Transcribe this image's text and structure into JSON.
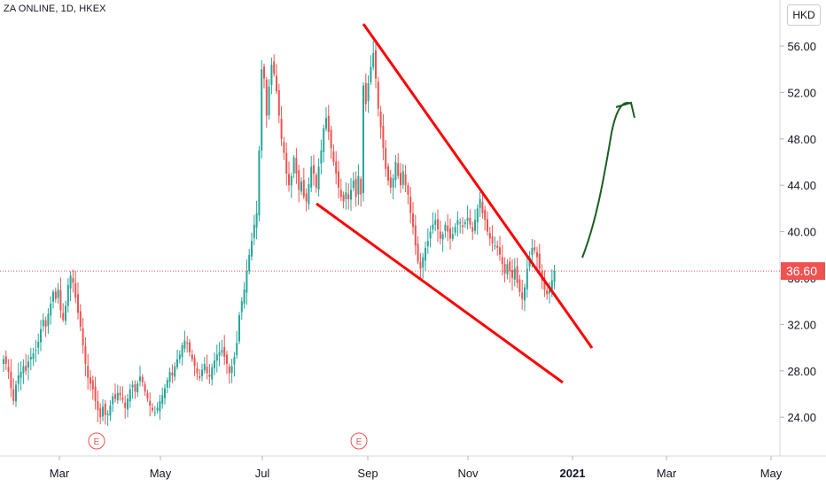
{
  "header": {
    "title": "ZA ONLINE, 1D, HKEX",
    "currency": "HKD"
  },
  "colors": {
    "up": "#26a69a",
    "down": "#ef5350",
    "annotation_red": "#ff0000",
    "annotation_green": "#1b5e20",
    "price_label_bg": "#ef5350"
  },
  "chart_data": {
    "type": "candlestick",
    "title": "ZA ONLINE, 1D, HKEX",
    "ylabel": "HKD",
    "ylim": [
      21.5,
      58.5
    ],
    "y_ticks": [
      "24.00",
      "28.00",
      "32.00",
      "36.00",
      "40.00",
      "44.00",
      "48.00",
      "52.00",
      "56.00"
    ],
    "x_ticks": [
      "Mar",
      "May",
      "Jul",
      "Sep",
      "Nov",
      "2021",
      "Mar",
      "May"
    ],
    "last_price": "36.60",
    "close_series": [
      29.0,
      28.6,
      27.9,
      26.5,
      25.4,
      26.8,
      27.6,
      27.9,
      28.4,
      28.0,
      28.8,
      29.2,
      29.5,
      29.8,
      30.5,
      31.6,
      32.4,
      31.8,
      32.9,
      33.8,
      34.8,
      34.2,
      35.0,
      33.2,
      32.4,
      33.6,
      35.4,
      36.2,
      35.6,
      34.3,
      33.0,
      31.8,
      30.2,
      28.6,
      27.4,
      26.9,
      26.4,
      25.4,
      24.6,
      24.0,
      24.9,
      24.2,
      24.3,
      25.0,
      25.8,
      25.6,
      26.1,
      25.9,
      25.5,
      24.8,
      25.6,
      26.4,
      26.8,
      26.2,
      26.9,
      27.5,
      27.0,
      26.2,
      25.6,
      25.0,
      24.6,
      24.4,
      24.8,
      25.4,
      25.9,
      26.5,
      27.2,
      27.9,
      27.6,
      28.4,
      29.0,
      29.4,
      30.2,
      30.6,
      30.4,
      29.6,
      29.0,
      28.4,
      27.8,
      27.4,
      28.1,
      28.6,
      27.8,
      27.5,
      28.3,
      28.9,
      29.4,
      29.6,
      29.8,
      29.2,
      28.6,
      27.8,
      28.4,
      29.2,
      30.4,
      32.8,
      34.0,
      35.0,
      36.6,
      38.0,
      39.2,
      40.6,
      41.6,
      47.0,
      54.0,
      53.2,
      50.0,
      52.5,
      54.4,
      53.6,
      52.1,
      50.0,
      48.0,
      46.8,
      45.0,
      44.0,
      44.8,
      46.4,
      45.0,
      43.6,
      44.3,
      43.0,
      42.6,
      44.1,
      45.6,
      45.0,
      43.8,
      45.6,
      47.0,
      48.9,
      49.8,
      48.6,
      47.2,
      46.0,
      45.0,
      43.8,
      43.0,
      42.6,
      43.4,
      42.8,
      43.6,
      44.4,
      43.0,
      44.8,
      43.2,
      52.6,
      51.0,
      52.8,
      54.2,
      55.4,
      53.2,
      50.6,
      49.0,
      47.2,
      45.4,
      44.4,
      43.8,
      44.6,
      46.0,
      44.8,
      44.0,
      45.2,
      44.0,
      43.2,
      41.6,
      40.4,
      38.8,
      37.4,
      36.8,
      37.8,
      38.6,
      39.2,
      40.0,
      40.6,
      41.0,
      40.2,
      39.4,
      39.8,
      40.6,
      40.0,
      39.4,
      39.8,
      40.4,
      41.0,
      40.8,
      40.4,
      40.8,
      41.2,
      40.6,
      40.0,
      41.0,
      42.0,
      42.8,
      41.6,
      41.0,
      40.0,
      39.4,
      39.0,
      38.8,
      38.6,
      38.0,
      37.2,
      36.4,
      37.2,
      36.6,
      36.0,
      36.8,
      35.6,
      34.8,
      34.2,
      35.2,
      36.8,
      37.8,
      38.6,
      38.4,
      37.8,
      36.8,
      35.8,
      35.0,
      34.6,
      35.0,
      35.8,
      36.6
    ]
  },
  "annotations": {
    "earnings_marker": "E"
  }
}
